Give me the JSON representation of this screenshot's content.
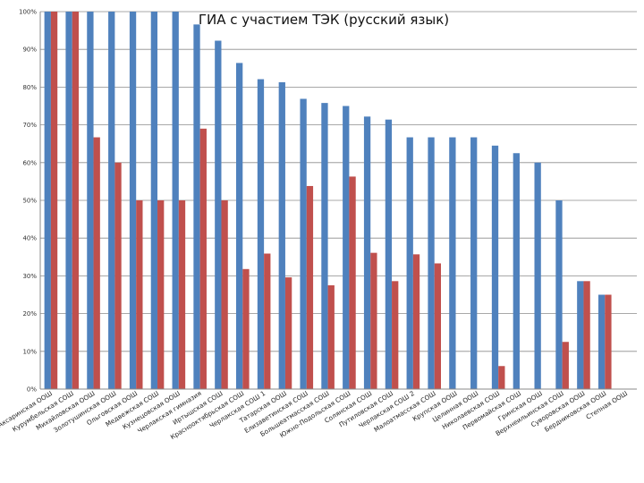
{
  "chart_data": {
    "type": "bar",
    "title": "ГИА с участием ТЭК  (русский язык)",
    "xlabel": "",
    "ylabel": "",
    "ylim": [
      0,
      100
    ],
    "yticks": [
      "0%",
      "10%",
      "20%",
      "30%",
      "40%",
      "50%",
      "60%",
      "70%",
      "80%",
      "90%",
      "100%"
    ],
    "grid": true,
    "legend": "none",
    "categories": [
      "Аксаринская ООШ",
      "Курумбельская СОШ",
      "Михайловская ООШ",
      "Золотушинская ООШ",
      "Ольговская ООШ",
      "Медвежская СОШ",
      "Кузнецовская ООШ",
      "Черлакская гимназия",
      "Иртышская СОШ",
      "Краснооктябрьская СОШ",
      "Черлакская СОШ 1",
      "Татарская ООШ",
      "Елизаветинская СОШ",
      "Большеатмасская СОШ",
      "Южно-Подольская СОШ",
      "Солянская СОШ",
      "Путиловская СОШ",
      "Черлакская СОШ 2",
      "Малоатмасская СОШ",
      "Крупская ООШ",
      "Целинная ООШ",
      "Николаевская СОШ",
      "Первомайская СОШ",
      "Гринская ООШ",
      "Верхнеильинская СОШ",
      "Суворовская ООШ",
      "Бердниковская ООШ",
      "Степная ООШ"
    ],
    "series": [
      {
        "color": "#4f81bd",
        "values": [
          100,
          100,
          100,
          100,
          100,
          100,
          100,
          96.6,
          92.3,
          86.4,
          82.1,
          81.3,
          76.9,
          75.8,
          75.0,
          72.2,
          71.4,
          66.7,
          66.7,
          66.7,
          66.7,
          64.5,
          62.5,
          60.0,
          50.0,
          28.6,
          25.0,
          0
        ]
      },
      {
        "color": "#c0504d",
        "values": [
          100,
          100,
          66.7,
          60.0,
          50.0,
          50.0,
          50.0,
          69.0,
          50.0,
          31.8,
          35.9,
          29.6,
          53.8,
          27.5,
          56.3,
          36.1,
          28.6,
          35.7,
          33.3,
          0,
          0,
          6.1,
          0,
          0,
          12.5,
          28.6,
          25.0,
          0
        ]
      }
    ]
  }
}
